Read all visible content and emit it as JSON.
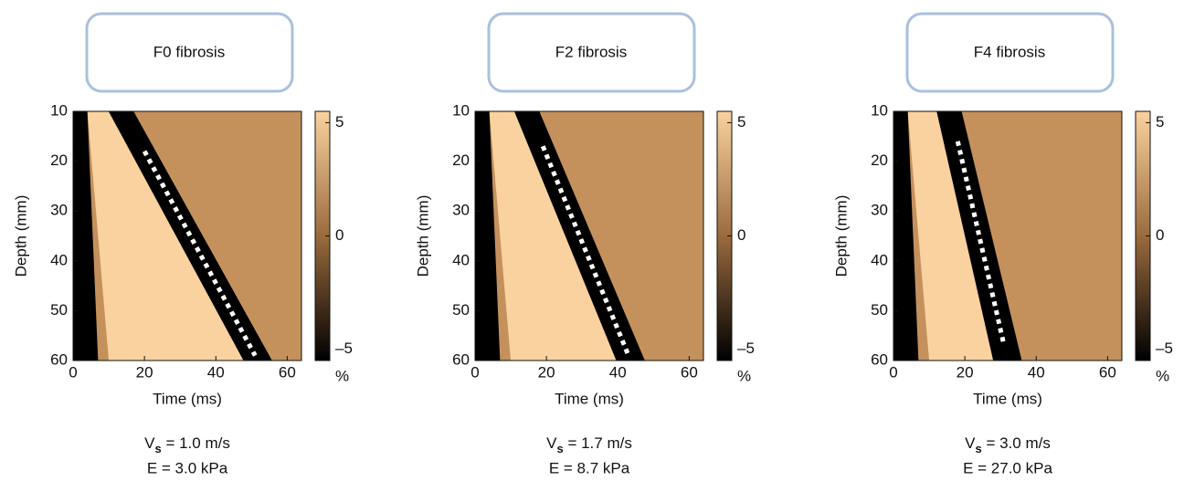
{
  "chart_data": [
    {
      "type": "heatmap",
      "title": "F0 fibrosis",
      "xlabel": "Time (ms)",
      "ylabel": "Depth (mm)",
      "xlim": [
        0,
        64
      ],
      "xticks": [
        0,
        20,
        40,
        60
      ],
      "ylim": [
        60,
        10
      ],
      "yticks": [
        10,
        20,
        30,
        40,
        50,
        60
      ],
      "colorbar": {
        "lim": [
          -5.5,
          5.5
        ],
        "ticks": [
          5,
          0,
          {
            "value": -5,
            "label": "–5"
          }
        ],
        "unit": "%",
        "colors": [
          "#000000",
          "#9a6b3e",
          "#f9d29f"
        ]
      },
      "wave_front": {
        "x": [
          20,
          51
        ],
        "y": [
          18,
          59
        ]
      },
      "velocity": {
        "symbol": "V",
        "subscript": "s",
        "text": " = 1.0 m/s"
      },
      "modulus": "E = 3.0 kPa"
    },
    {
      "type": "heatmap",
      "title": "F2 fibrosis",
      "xlabel": "Time (ms)",
      "ylabel": "Depth (mm)",
      "xlim": [
        0,
        64
      ],
      "xticks": [
        0,
        20,
        40,
        60
      ],
      "ylim": [
        60,
        10
      ],
      "yticks": [
        10,
        20,
        30,
        40,
        50,
        60
      ],
      "colorbar": {
        "lim": [
          -5.5,
          5.5
        ],
        "ticks": [
          5,
          0,
          {
            "value": -5,
            "label": "–5"
          }
        ],
        "unit": "%",
        "colors": [
          "#000000",
          "#9a6b3e",
          "#f9d29f"
        ]
      },
      "wave_front": {
        "x": [
          19,
          43
        ],
        "y": [
          17,
          59
        ]
      },
      "velocity": {
        "symbol": "V",
        "subscript": "s",
        "text": " = 1.7 m/s"
      },
      "modulus": "E = 8.7 kPa"
    },
    {
      "type": "heatmap",
      "title": "F4 fibrosis",
      "xlabel": "Time (ms)",
      "ylabel": "Depth (mm)",
      "xlim": [
        0,
        64
      ],
      "xticks": [
        0,
        20,
        40,
        60
      ],
      "ylim": [
        60,
        10
      ],
      "yticks": [
        10,
        20,
        30,
        40,
        50,
        60
      ],
      "colorbar": {
        "lim": [
          -5.5,
          5.5
        ],
        "ticks": [
          5,
          0,
          {
            "value": -5,
            "label": "–5"
          }
        ],
        "unit": "%",
        "colors": [
          "#000000",
          "#9a6b3e",
          "#f9d29f"
        ]
      },
      "wave_front": {
        "x": [
          18,
          31
        ],
        "y": [
          16,
          57
        ]
      },
      "velocity": {
        "symbol": "V",
        "subscript": "s",
        "text": " = 3.0 m/s"
      },
      "modulus": "E = 27.0 kPa"
    }
  ]
}
